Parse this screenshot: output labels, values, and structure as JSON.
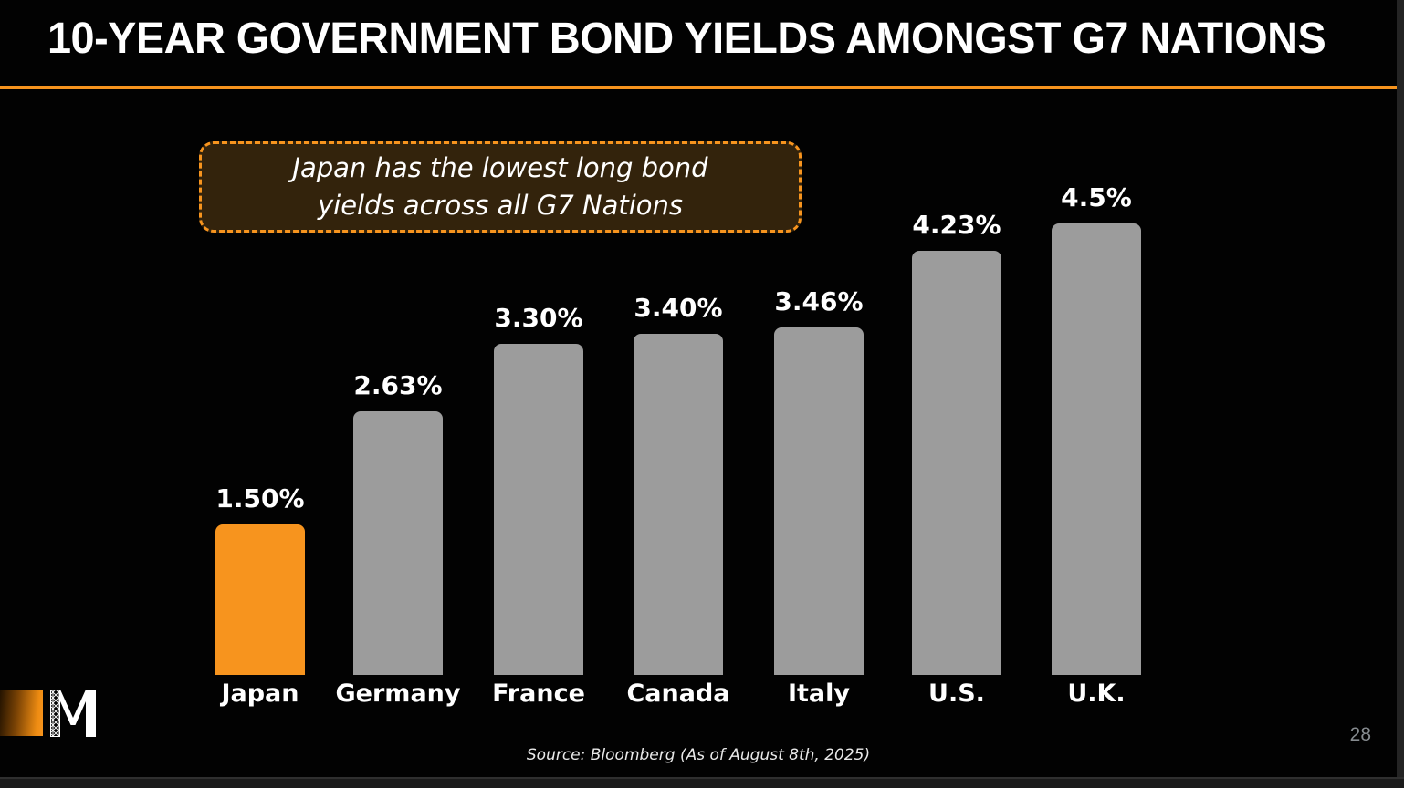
{
  "slide": {
    "title": "10-YEAR GOVERNMENT BOND YIELDS AMONGST G7 NATIONS",
    "callout": {
      "line1": "Japan has the lowest long bond",
      "line2": "yields across all G7 Nations"
    },
    "source": "Source: Bloomberg (As of August 8th, 2025)",
    "page_number": "28"
  },
  "colors": {
    "accent_orange": "#f7941e",
    "bar_gray": "#9c9c9c",
    "callout_bg": "#33230c",
    "slide_bg": "#020202",
    "page_number_gray": "#868b8f"
  },
  "chart_data": {
    "type": "bar",
    "title": "10-Year Government Bond Yields Amongst G7 Nations",
    "categories": [
      "Japan",
      "Germany",
      "France",
      "Canada",
      "Italy",
      "U.S.",
      "U.K."
    ],
    "values": [
      1.5,
      2.63,
      3.3,
      3.4,
      3.46,
      4.23,
      4.5
    ],
    "value_labels": [
      "1.50%",
      "2.63%",
      "3.30%",
      "3.40%",
      "3.46%",
      "4.23%",
      "4.5%"
    ],
    "bar_colors": [
      "#f7941e",
      "#9c9c9c",
      "#9c9c9c",
      "#9c9c9c",
      "#9c9c9c",
      "#9c9c9c",
      "#9c9c9c"
    ],
    "highlight_index": 0,
    "highlight_category": "Japan",
    "annotation": "Japan has the lowest long bond yields across all G7 Nations",
    "xlabel": "",
    "ylabel": "",
    "ylim": [
      0,
      4.7
    ],
    "grid": false,
    "legend": false,
    "data_labels": true
  }
}
